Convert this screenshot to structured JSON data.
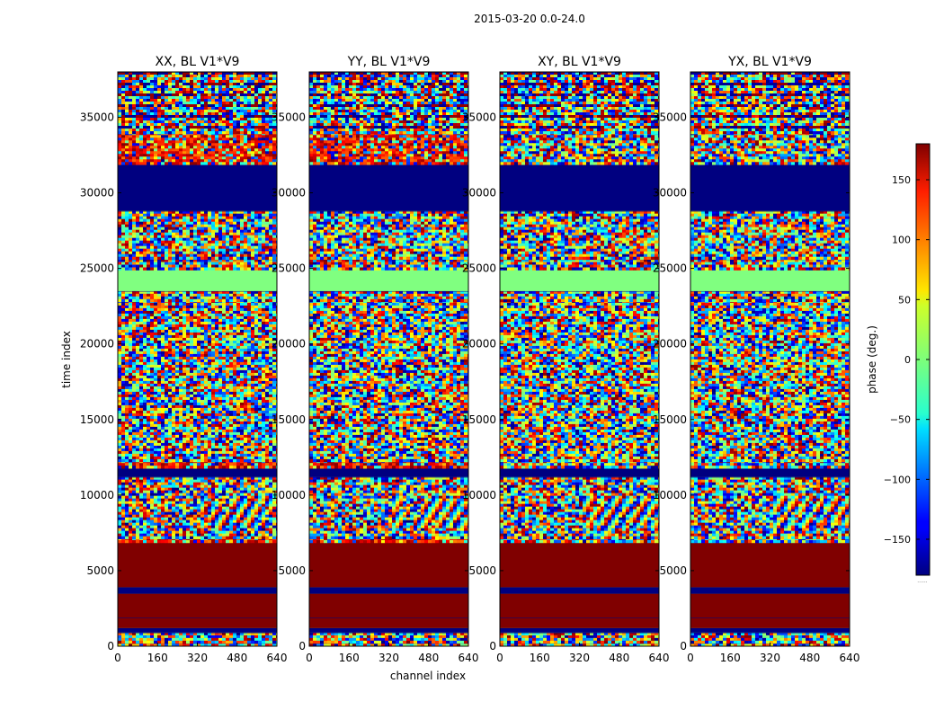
{
  "chart_data": {
    "type": "heatmap",
    "suptitle": "2015-03-20 0.0-24.0",
    "xlabel": "channel index",
    "ylabel": "time index",
    "xlim": [
      0,
      640
    ],
    "ylim": [
      0,
      38000
    ],
    "xticks": [
      0,
      160,
      320,
      480,
      640
    ],
    "yticks": [
      0,
      5000,
      10000,
      15000,
      20000,
      25000,
      30000,
      35000
    ],
    "colorbar": {
      "label": "phase (deg.)",
      "range": [
        -180,
        180
      ],
      "ticks": [
        -150,
        -100,
        -50,
        0,
        50,
        100,
        150
      ],
      "colormap": "jet",
      "footnote": "......"
    },
    "panels": [
      {
        "title": "XX, BL V1*V9"
      },
      {
        "title": "YY, BL V1*V9"
      },
      {
        "title": "XY, BL V1*V9"
      },
      {
        "title": "YX, BL V1*V9"
      }
    ],
    "bands": [
      {
        "from": 0,
        "to": 200,
        "kind": "noise"
      },
      {
        "from": 200,
        "to": 900,
        "kind": "noise"
      },
      {
        "from": 900,
        "to": 1200,
        "kind": "solid",
        "phase": -180
      },
      {
        "from": 1200,
        "to": 1900,
        "kind": "solid",
        "phase": 180
      },
      {
        "from": 1900,
        "to": 3500,
        "kind": "solid",
        "phase": 180
      },
      {
        "from": 3500,
        "to": 3900,
        "kind": "solid",
        "phase": -180
      },
      {
        "from": 3900,
        "to": 6900,
        "kind": "solid",
        "phase": 180
      },
      {
        "from": 6900,
        "to": 7200,
        "kind": "noise-warm"
      },
      {
        "from": 7200,
        "to": 11200,
        "kind": "fringe"
      },
      {
        "from": 11200,
        "to": 11900,
        "kind": "solid",
        "phase": -180
      },
      {
        "from": 11900,
        "to": 12300,
        "kind": "noise-warm"
      },
      {
        "from": 12300,
        "to": 22900,
        "kind": "noise"
      },
      {
        "from": 22900,
        "to": 23500,
        "kind": "noise"
      },
      {
        "from": 23500,
        "to": 25000,
        "kind": "solid",
        "phase": 0
      },
      {
        "from": 25000,
        "to": 25600,
        "kind": "noise"
      },
      {
        "from": 25600,
        "to": 28800,
        "kind": "noise"
      },
      {
        "from": 28800,
        "to": 31900,
        "kind": "solid",
        "phase": -180
      },
      {
        "from": 31900,
        "to": 34000,
        "kind": "noise-warm"
      },
      {
        "from": 34000,
        "to": 38000,
        "kind": "noise-striped"
      }
    ]
  }
}
